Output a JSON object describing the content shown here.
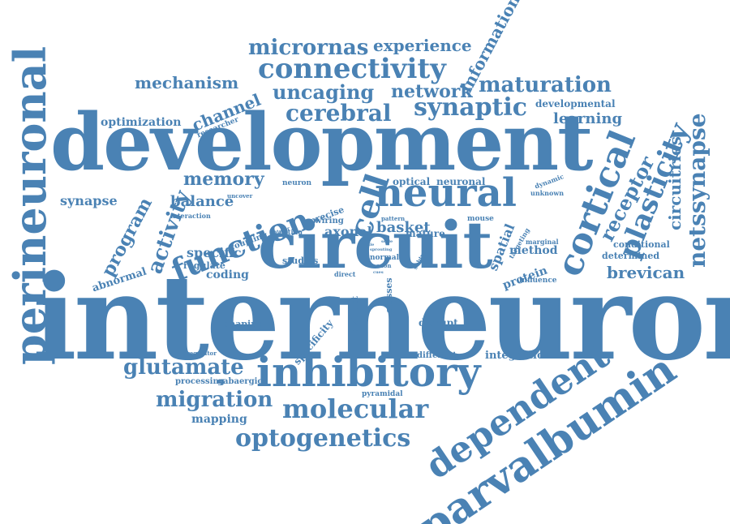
{
  "word_cloud": {
    "color": "#4a82b4",
    "background": "#ffffff",
    "words": [
      "interneuron",
      "development",
      "circuit",
      "perineuronal",
      "inhibitory",
      "parvalbumin",
      "dependent",
      "neural",
      "cortical",
      "plasticity",
      "function",
      "connectivity",
      "molecular",
      "optogenetics",
      "migration",
      "glutamate",
      "synaptic",
      "cerebral",
      "micrornas",
      "maturation",
      "network",
      "uncaging",
      "mechanism",
      "experience",
      "information",
      "memory",
      "activity",
      "program",
      "cell",
      "receptor",
      "netssynapse",
      "circuitries",
      "brevican",
      "learning",
      "developmental",
      "channel",
      "optimization",
      "synapse",
      "balance",
      "specific",
      "coding",
      "regulate",
      "abnormal",
      "shaping",
      "axonal",
      "basket",
      "mature",
      "spatial",
      "method",
      "protein",
      "influence",
      "determined",
      "conditional",
      "disrupt",
      "integration",
      "different",
      "processing",
      "gabaergic",
      "regulator",
      "pyramidal",
      "mapping",
      "specificity",
      "distinct",
      "classes",
      "studies",
      "coupling",
      "gating",
      "wiring",
      "precise",
      "interaction",
      "uncover",
      "researcher",
      "neuron",
      "optical",
      "neuronal",
      "dynamic",
      "unknown",
      "pattern",
      "mouse",
      "targeting",
      "marginal",
      "subtype",
      "normal",
      "axon",
      "direct",
      "cellular",
      "sprouting",
      "scale",
      "rule",
      "result",
      "cues"
    ]
  }
}
